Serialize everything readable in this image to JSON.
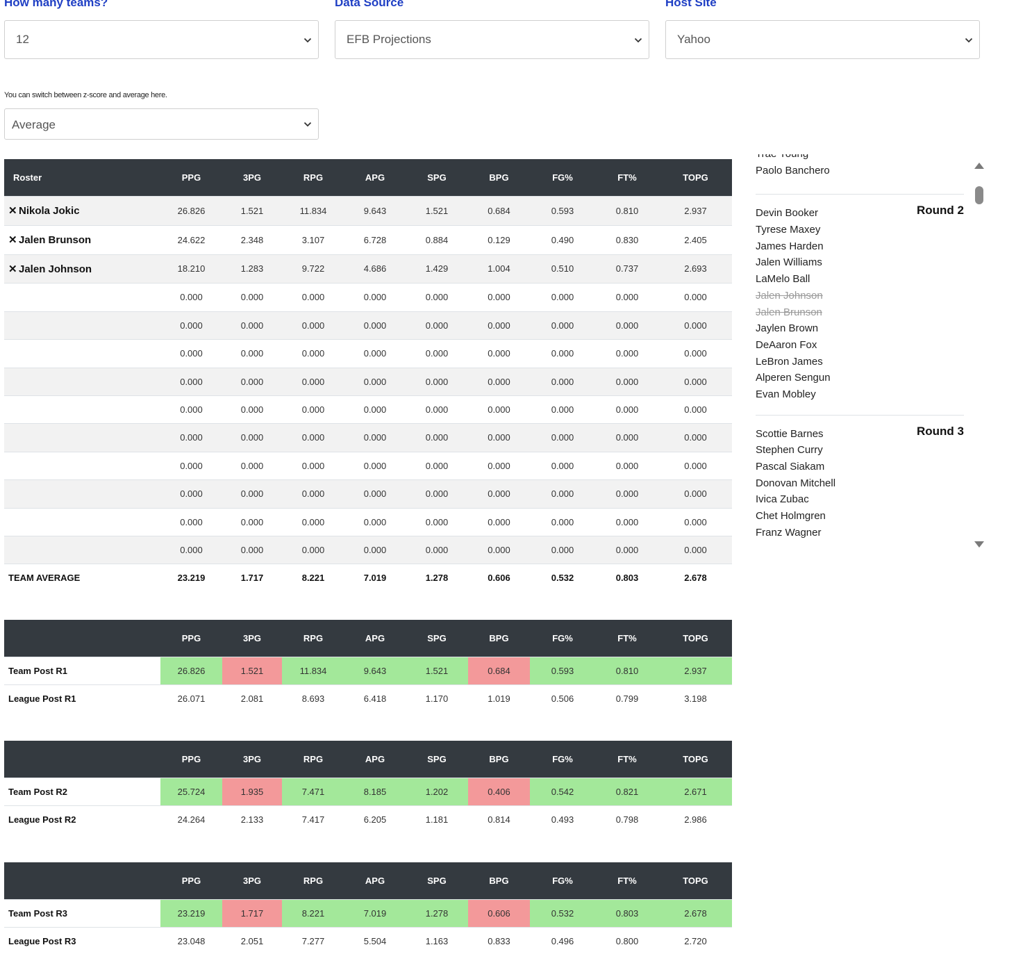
{
  "selectors": {
    "teams": {
      "label": "How many teams?",
      "value": "12"
    },
    "source": {
      "label": "Data Source",
      "value": "EFB Projections"
    },
    "host": {
      "label": "Host Site",
      "value": "Yahoo"
    },
    "mode": {
      "hint": "You can switch between z-score and average here.",
      "value": "Average"
    }
  },
  "roster_table": {
    "header_first": "Roster",
    "columns": [
      "PPG",
      "3PG",
      "RPG",
      "APG",
      "SPG",
      "BPG",
      "FG%",
      "FT%",
      "TOPG"
    ],
    "remove_glyph": "✕",
    "players": [
      {
        "name": "Nikola Jokic",
        "stats": [
          "26.826",
          "1.521",
          "11.834",
          "9.643",
          "1.521",
          "0.684",
          "0.593",
          "0.810",
          "2.937"
        ]
      },
      {
        "name": "Jalen Brunson",
        "stats": [
          "24.622",
          "2.348",
          "3.107",
          "6.728",
          "0.884",
          "0.129",
          "0.490",
          "0.830",
          "2.405"
        ]
      },
      {
        "name": "Jalen Johnson",
        "stats": [
          "18.210",
          "1.283",
          "9.722",
          "4.686",
          "1.429",
          "1.004",
          "0.510",
          "0.737",
          "2.693"
        ]
      },
      {
        "name": "",
        "stats": [
          "0.000",
          "0.000",
          "0.000",
          "0.000",
          "0.000",
          "0.000",
          "0.000",
          "0.000",
          "0.000"
        ]
      },
      {
        "name": "",
        "stats": [
          "0.000",
          "0.000",
          "0.000",
          "0.000",
          "0.000",
          "0.000",
          "0.000",
          "0.000",
          "0.000"
        ]
      },
      {
        "name": "",
        "stats": [
          "0.000",
          "0.000",
          "0.000",
          "0.000",
          "0.000",
          "0.000",
          "0.000",
          "0.000",
          "0.000"
        ]
      },
      {
        "name": "",
        "stats": [
          "0.000",
          "0.000",
          "0.000",
          "0.000",
          "0.000",
          "0.000",
          "0.000",
          "0.000",
          "0.000"
        ]
      },
      {
        "name": "",
        "stats": [
          "0.000",
          "0.000",
          "0.000",
          "0.000",
          "0.000",
          "0.000",
          "0.000",
          "0.000",
          "0.000"
        ]
      },
      {
        "name": "",
        "stats": [
          "0.000",
          "0.000",
          "0.000",
          "0.000",
          "0.000",
          "0.000",
          "0.000",
          "0.000",
          "0.000"
        ]
      },
      {
        "name": "",
        "stats": [
          "0.000",
          "0.000",
          "0.000",
          "0.000",
          "0.000",
          "0.000",
          "0.000",
          "0.000",
          "0.000"
        ]
      },
      {
        "name": "",
        "stats": [
          "0.000",
          "0.000",
          "0.000",
          "0.000",
          "0.000",
          "0.000",
          "0.000",
          "0.000",
          "0.000"
        ]
      },
      {
        "name": "",
        "stats": [
          "0.000",
          "0.000",
          "0.000",
          "0.000",
          "0.000",
          "0.000",
          "0.000",
          "0.000",
          "0.000"
        ]
      },
      {
        "name": "",
        "stats": [
          "0.000",
          "0.000",
          "0.000",
          "0.000",
          "0.000",
          "0.000",
          "0.000",
          "0.000",
          "0.000"
        ]
      }
    ],
    "total": {
      "name": "TEAM AVERAGE",
      "stats": [
        "23.219",
        "1.717",
        "8.221",
        "7.019",
        "1.278",
        "0.606",
        "0.532",
        "0.803",
        "2.678"
      ]
    }
  },
  "comparisons": [
    {
      "team": {
        "name": "Team Post R1",
        "stats": [
          "26.826",
          "1.521",
          "11.834",
          "9.643",
          "1.521",
          "0.684",
          "0.593",
          "0.810",
          "2.937"
        ],
        "status": [
          "good",
          "bad",
          "good",
          "good",
          "good",
          "bad",
          "good",
          "good",
          "good"
        ]
      },
      "league": {
        "name": "League Post R1",
        "stats": [
          "26.071",
          "2.081",
          "8.693",
          "6.418",
          "1.170",
          "1.019",
          "0.506",
          "0.799",
          "3.198"
        ]
      }
    },
    {
      "team": {
        "name": "Team Post R2",
        "stats": [
          "25.724",
          "1.935",
          "7.471",
          "8.185",
          "1.202",
          "0.406",
          "0.542",
          "0.821",
          "2.671"
        ],
        "status": [
          "good",
          "bad",
          "good",
          "good",
          "good",
          "bad",
          "good",
          "good",
          "good"
        ]
      },
      "league": {
        "name": "League Post R2",
        "stats": [
          "24.264",
          "2.133",
          "7.417",
          "6.205",
          "1.181",
          "0.814",
          "0.493",
          "0.798",
          "2.986"
        ]
      }
    },
    {
      "team": {
        "name": "Team Post R3",
        "stats": [
          "23.219",
          "1.717",
          "8.221",
          "7.019",
          "1.278",
          "0.606",
          "0.532",
          "0.803",
          "2.678"
        ],
        "status": [
          "good",
          "bad",
          "good",
          "good",
          "good",
          "bad",
          "good",
          "good",
          "good"
        ]
      },
      "league": {
        "name": "League Post R3",
        "stats": [
          "23.048",
          "2.051",
          "7.277",
          "5.504",
          "1.163",
          "0.833",
          "0.496",
          "0.800",
          "2.720"
        ]
      }
    }
  ],
  "rankings": [
    {
      "title": "",
      "players": [
        {
          "name": "Trae Young",
          "taken": false
        },
        {
          "name": "Paolo Banchero",
          "taken": false
        }
      ]
    },
    {
      "title": "Round 2",
      "players": [
        {
          "name": "Devin Booker",
          "taken": false
        },
        {
          "name": "Tyrese Maxey",
          "taken": false
        },
        {
          "name": "James Harden",
          "taken": false
        },
        {
          "name": "Jalen Williams",
          "taken": false
        },
        {
          "name": "LaMelo Ball",
          "taken": false
        },
        {
          "name": "Jalen Johnson",
          "taken": true
        },
        {
          "name": "Jalen Brunson",
          "taken": true
        },
        {
          "name": "Jaylen Brown",
          "taken": false
        },
        {
          "name": "DeAaron Fox",
          "taken": false
        },
        {
          "name": "LeBron James",
          "taken": false
        },
        {
          "name": "Alperen Sengun",
          "taken": false
        },
        {
          "name": "Evan Mobley",
          "taken": false
        }
      ]
    },
    {
      "title": "Round 3",
      "players": [
        {
          "name": "Scottie Barnes",
          "taken": false
        },
        {
          "name": "Stephen Curry",
          "taken": false
        },
        {
          "name": "Pascal Siakam",
          "taken": false
        },
        {
          "name": "Donovan Mitchell",
          "taken": false
        },
        {
          "name": "Ivica Zubac",
          "taken": false
        },
        {
          "name": "Chet Holmgren",
          "taken": false
        },
        {
          "name": "Franz Wagner",
          "taken": false
        }
      ]
    }
  ],
  "colors": {
    "good": "#a3e89a",
    "bad": "#f3999a",
    "header": "#343a40",
    "label": "#1f3fc4"
  }
}
